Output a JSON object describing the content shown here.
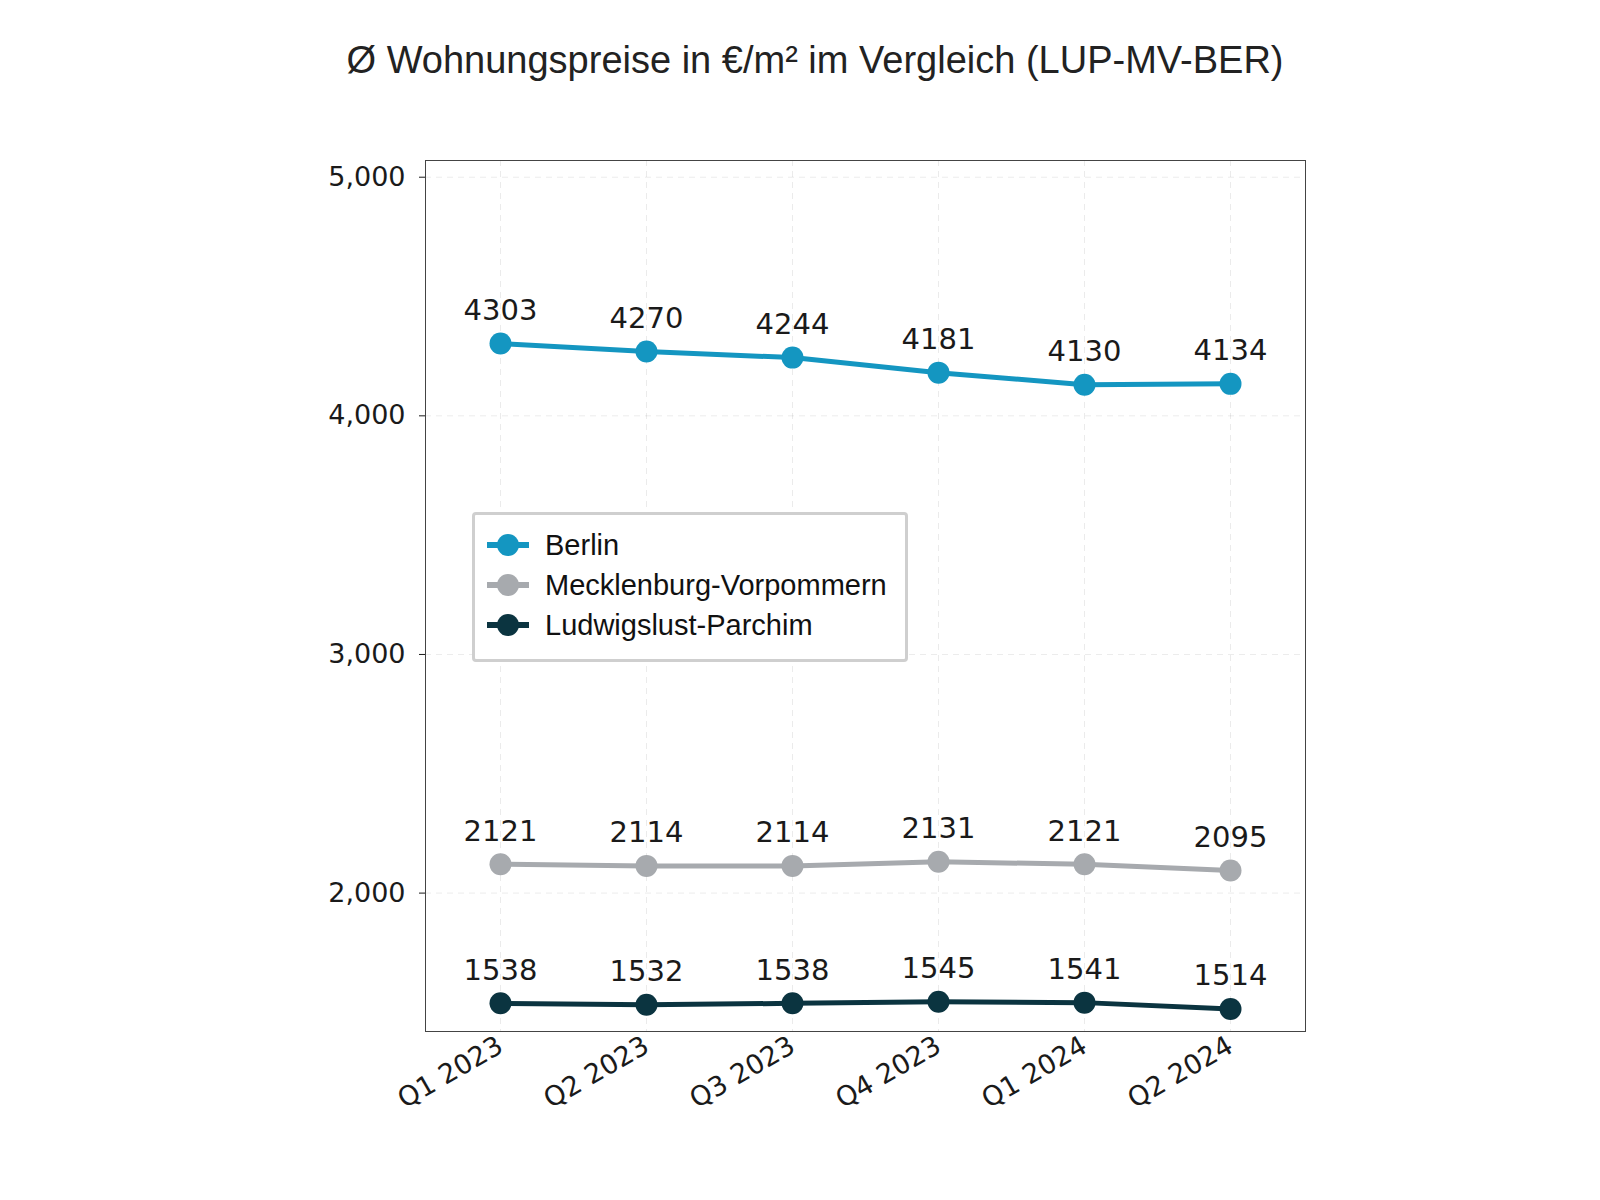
{
  "chart_data": {
    "type": "line",
    "title": "Ø Wohnungspreise in €/m² im Vergleich (LUP-MV-BER)",
    "categories": [
      "Q1 2023",
      "Q2 2023",
      "Q3 2023",
      "Q4 2023",
      "Q1 2024",
      "Q2 2024"
    ],
    "series": [
      {
        "name": "Berlin",
        "color": "#1496c1",
        "values": [
          4303,
          4270,
          4244,
          4181,
          4130,
          4134
        ]
      },
      {
        "name": "Mecklenburg-Vorpommern",
        "color": "#a7aaae",
        "values": [
          2121,
          2114,
          2114,
          2131,
          2121,
          2095
        ]
      },
      {
        "name": "Ludwigslust-Parchim",
        "color": "#0b3440",
        "values": [
          1538,
          1532,
          1538,
          1545,
          1541,
          1514
        ]
      }
    ],
    "ylim": [
      1420,
      5070
    ],
    "yticks": [
      2000,
      3000,
      4000,
      5000
    ],
    "grid": true,
    "data_labels": true,
    "legend": "center left",
    "marker": "circle"
  }
}
